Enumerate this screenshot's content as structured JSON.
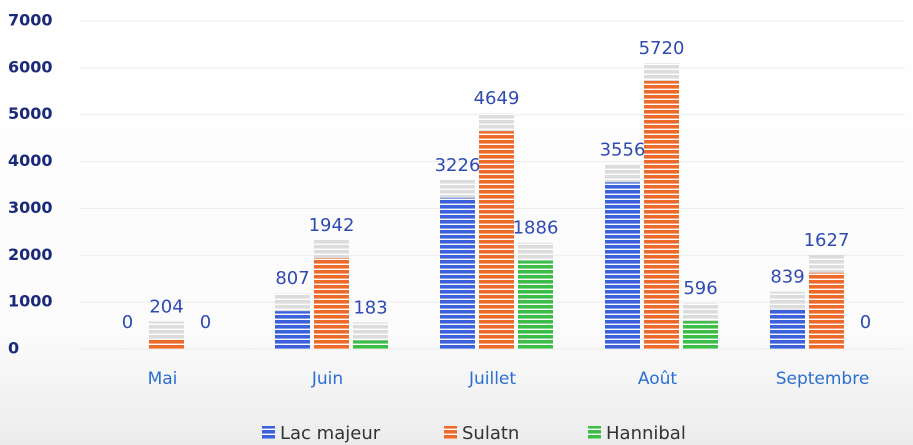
{
  "chart_data": {
    "type": "bar",
    "categories": [
      "Mai",
      "Juin",
      "Juillet",
      "Août",
      "Septembre"
    ],
    "series": [
      {
        "name": "Lac majeur",
        "color": "#3b62dc",
        "values": [
          0,
          807,
          3226,
          3556,
          839
        ]
      },
      {
        "name": "Sulatn",
        "color": "#ec6b2b",
        "values": [
          204,
          1942,
          4649,
          5720,
          1627
        ]
      },
      {
        "name": "Hannibal",
        "color": "#3cbd48",
        "values": [
          0,
          183,
          1886,
          596,
          0
        ]
      }
    ],
    "ylim": [
      0,
      7000
    ],
    "yticks": [
      0,
      1000,
      2000,
      3000,
      4000,
      5000,
      6000,
      7000
    ],
    "grid": true,
    "legend": "bottom"
  }
}
